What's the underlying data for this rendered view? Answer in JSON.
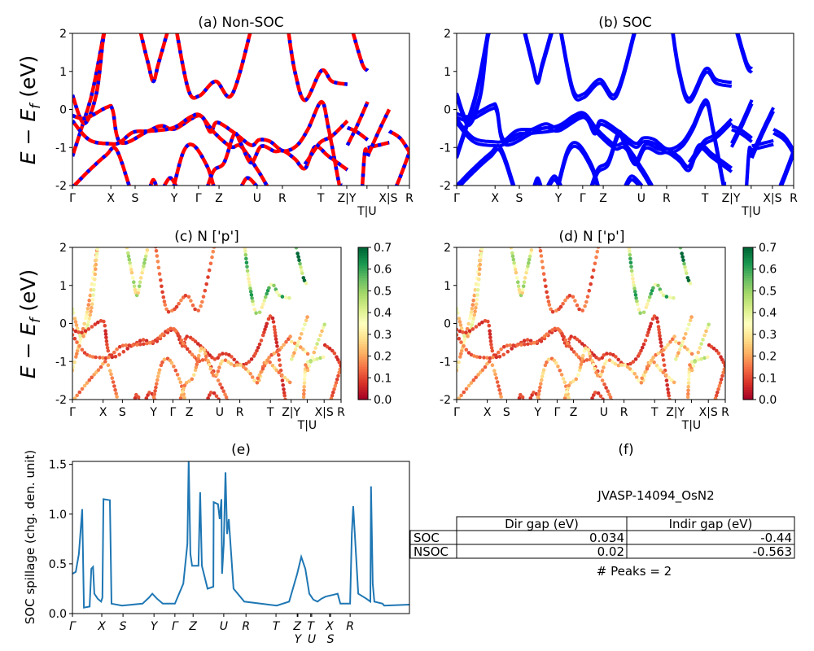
{
  "colors": {
    "nsoc_line": "#ff0000",
    "nsoc_dash": "#0000ff",
    "soc_line": "#0000ff",
    "spillage_line": "#1f77b4",
    "colormap": [
      "#a50026",
      "#d73027",
      "#f46d43",
      "#fdae61",
      "#fee08b",
      "#ffffbf",
      "#d9ef8b",
      "#a6d96a",
      "#66bd63",
      "#1a9850",
      "#006837"
    ]
  },
  "band_ylabel": {
    "main": "E − E",
    "sub": "f",
    "unit": " (eV)"
  },
  "kpath_labels": [
    "Γ",
    "X",
    "S",
    "Y",
    "Γ",
    "Z",
    "U",
    "R",
    "T",
    "Z|Y",
    "T|U",
    "X|S",
    "R"
  ],
  "kpath_ticks": [
    0,
    0.114,
    0.186,
    0.302,
    0.374,
    0.435,
    0.548,
    0.623,
    0.737,
    0.814,
    0.874,
    0.937,
    1.0
  ],
  "energy_ticks": [
    -2,
    -1,
    0,
    1,
    2
  ],
  "chart_data": [
    {
      "id": "a",
      "type": "line",
      "title": "(a) Non-SOC",
      "ylim": [
        -2,
        2
      ],
      "bands": [
        [
          [
            0,
            -1.23
          ],
          [
            0.03,
            -0.41
          ],
          [
            0.06,
            0.49
          ],
          [
            0.095,
            2.1
          ]
        ],
        [
          [
            0,
            0.38
          ],
          [
            0.035,
            -0.37
          ],
          [
            0.071,
            0.41
          ],
          [
            0.091,
            1.84
          ],
          [
            0.1,
            2.1
          ]
        ],
        [
          [
            0,
            -0.16
          ],
          [
            0.039,
            -0.23
          ],
          [
            0.103,
            0.06
          ],
          [
            0.119,
            -0.01
          ],
          [
            0.143,
            -0.87
          ],
          [
            0.224,
            -0.57
          ],
          [
            0.264,
            -0.43
          ],
          [
            0.304,
            -0.51
          ],
          [
            0.377,
            -0.16
          ],
          [
            0.409,
            -0.59
          ],
          [
            0.429,
            -0.34
          ],
          [
            0.481,
            -0.62
          ],
          [
            0.53,
            -0.94
          ],
          [
            0.554,
            -0.8
          ],
          [
            0.586,
            -0.84
          ],
          [
            0.626,
            -1.09
          ],
          [
            0.667,
            -0.94
          ],
          [
            0.7,
            -0.5
          ],
          [
            0.739,
            0.2
          ],
          [
            0.76,
            -0.5
          ],
          [
            0.79,
            -1.9
          ],
          [
            0.795,
            -2.05
          ]
        ],
        [
          [
            0,
            -0.3
          ],
          [
            0.05,
            -0.8
          ],
          [
            0.11,
            -0.9
          ],
          [
            0.14,
            -0.87
          ],
          [
            0.18,
            -0.6
          ],
          [
            0.23,
            -0.57
          ],
          [
            0.3,
            -0.48
          ],
          [
            0.35,
            -0.2
          ],
          [
            0.38,
            -0.16
          ],
          [
            0.42,
            -0.6
          ],
          [
            0.47,
            -0.98
          ],
          [
            0.5,
            -0.97
          ],
          [
            0.55,
            -1.6
          ],
          [
            0.58,
            -2.05
          ]
        ],
        [
          [
            0.2,
            2.1
          ],
          [
            0.225,
            1.2
          ],
          [
            0.24,
            0.74
          ],
          [
            0.255,
            1.2
          ],
          [
            0.284,
            2.1
          ]
        ],
        [
          [
            0.308,
            2.1
          ],
          [
            0.345,
            0.49
          ],
          [
            0.377,
            0.36
          ],
          [
            0.425,
            0.74
          ],
          [
            0.473,
            0.38
          ],
          [
            0.53,
            2.1
          ]
        ],
        [
          [
            0,
            -2.05
          ],
          [
            0.05,
            -1.6
          ],
          [
            0.1,
            -1.2
          ],
          [
            0.13,
            -1.05
          ],
          [
            0.17,
            -2.05
          ]
        ],
        [
          [
            0.27,
            -2.05
          ],
          [
            0.29,
            -1.8
          ],
          [
            0.31,
            -2.05
          ]
        ],
        [
          [
            0.3,
            -2.05
          ],
          [
            0.33,
            -1.1
          ],
          [
            0.36,
            -0.95
          ],
          [
            0.4,
            -1.5
          ],
          [
            0.42,
            -2.05
          ]
        ],
        [
          [
            0.4,
            -2.05
          ],
          [
            0.42,
            -1.6
          ],
          [
            0.45,
            -1.4
          ],
          [
            0.48,
            -0.65
          ],
          [
            0.5,
            -0.9
          ],
          [
            0.53,
            -1.4
          ],
          [
            0.56,
            -0.97
          ],
          [
            0.6,
            -1.1
          ],
          [
            0.626,
            -1.09
          ],
          [
            0.66,
            -1.3
          ],
          [
            0.69,
            -1.55
          ],
          [
            0.72,
            -0.98
          ],
          [
            0.76,
            -1.23
          ],
          [
            0.816,
            -1.59
          ]
        ],
        [
          [
            0.64,
            2.1
          ],
          [
            0.66,
            1.0
          ],
          [
            0.69,
            0.24
          ],
          [
            0.739,
            1.02
          ],
          [
            0.77,
            0.74
          ],
          [
            0.816,
            0.66
          ]
        ],
        [
          [
            0.83,
            2.1
          ],
          [
            0.86,
            1.2
          ],
          [
            0.876,
            1.02
          ]
        ],
        [
          [
            0.69,
            -1.44
          ],
          [
            0.723,
            -1.01
          ],
          [
            0.739,
            -0.84
          ],
          [
            0.771,
            -0.69
          ],
          [
            0.816,
            -0.3
          ]
        ],
        [
          [
            0.816,
            -0.48
          ],
          [
            0.844,
            -0.59
          ],
          [
            0.876,
            -0.8
          ]
        ],
        [
          [
            0.816,
            -0.94
          ],
          [
            0.844,
            -0.44
          ],
          [
            0.876,
            0.2
          ]
        ],
        [
          [
            0.86,
            -2.05
          ],
          [
            0.868,
            -1.09
          ],
          [
            0.876,
            -1.2
          ]
        ],
        [
          [
            0.876,
            -1.01
          ],
          [
            0.908,
            -0.94
          ],
          [
            0.94,
            -0.87
          ]
        ],
        [
          [
            0.876,
            -1.23
          ],
          [
            0.908,
            -0.59
          ],
          [
            0.94,
            0.0
          ]
        ],
        [
          [
            0.94,
            -0.57
          ],
          [
            0.973,
            -0.76
          ],
          [
            1.0,
            -1.12
          ]
        ],
        [
          [
            0.96,
            -2.05
          ],
          [
            0.98,
            -1.6
          ],
          [
            1.0,
            -1.12
          ]
        ],
        [
          [
            0.5,
            -2.05
          ],
          [
            0.52,
            -1.8
          ],
          [
            0.55,
            -2.05
          ]
        ],
        [
          [
            0.23,
            -2.05
          ],
          [
            0.24,
            -1.85
          ],
          [
            0.25,
            -2.05
          ]
        ]
      ]
    },
    {
      "id": "b",
      "type": "line",
      "title": "(b) SOC",
      "ylim": [
        -2,
        2
      ]
    },
    {
      "id": "c",
      "type": "scatter",
      "title": "(c)  N ['p']",
      "ylim": [
        -2,
        2
      ],
      "colorbar_range": [
        0,
        0.7
      ],
      "colorbar_ticks": [
        "0.0",
        "0.1",
        "0.2",
        "0.3",
        "0.4",
        "0.5",
        "0.6",
        "0.7"
      ],
      "band_weights": [
        0.3,
        0.35,
        0.1,
        0.15,
        0.45,
        0.15,
        0.2,
        0.1,
        0.2,
        0.25,
        0.55,
        0.7,
        0.2,
        0.3,
        0.35,
        0.3,
        0.5,
        0.4,
        0.1,
        0.15,
        0.1,
        0.1
      ]
    },
    {
      "id": "d",
      "type": "scatter",
      "title": "(d) N ['p']",
      "ylim": [
        -2,
        2
      ],
      "colorbar_range": [
        0,
        0.7
      ],
      "colorbar_ticks": [
        "0.0",
        "0.1",
        "0.2",
        "0.3",
        "0.4",
        "0.5",
        "0.6",
        "0.7"
      ],
      "band_weights": [
        0.3,
        0.35,
        0.1,
        0.15,
        0.45,
        0.15,
        0.2,
        0.1,
        0.25,
        0.3,
        0.55,
        0.7,
        0.25,
        0.3,
        0.35,
        0.3,
        0.5,
        0.4,
        0.1,
        0.15,
        0.1,
        0.1
      ]
    },
    {
      "id": "e",
      "type": "line",
      "title": "(e)",
      "ylabel": "SOC spillage (chg. den. unit)",
      "ylim": [
        0,
        1.53
      ],
      "yticks": [
        "0.0",
        "0.5",
        "1.0",
        "1.5"
      ],
      "xtick_labels": [
        "Γ",
        "X",
        "S",
        "Y",
        "Γ",
        "Z",
        "U",
        "R",
        "T",
        "Z",
        "Y",
        "T",
        "U",
        "X",
        "S",
        "R"
      ],
      "xtick_pos": [
        0,
        0.087,
        0.15,
        0.242,
        0.304,
        0.358,
        0.449,
        0.515,
        0.604,
        0.667,
        0.669,
        0.707,
        0.71,
        0.763,
        0.766,
        0.824
      ],
      "x": [
        0,
        0.01,
        0.019,
        0.029,
        0.034,
        0.051,
        0.056,
        0.061,
        0.065,
        0.075,
        0.085,
        0.089,
        0.092,
        0.111,
        0.116,
        0.147,
        0.208,
        0.227,
        0.237,
        0.251,
        0.268,
        0.304,
        0.329,
        0.341,
        0.345,
        0.35,
        0.355,
        0.374,
        0.379,
        0.384,
        0.401,
        0.418,
        0.419,
        0.432,
        0.437,
        0.442,
        0.444,
        0.449,
        0.454,
        0.459,
        0.464,
        0.466,
        0.471,
        0.478,
        0.51,
        0.558,
        0.606,
        0.643,
        0.667,
        0.679,
        0.691,
        0.703,
        0.715,
        0.727,
        0.739,
        0.751,
        0.775,
        0.787,
        0.795,
        0.824,
        0.829,
        0.833,
        0.838,
        0.848,
        0.872,
        0.884,
        0.886,
        0.891,
        0.896,
        0.92,
        0.925,
        1.0
      ],
      "y": [
        0.4,
        0.42,
        0.6,
        1.05,
        0.06,
        0.07,
        0.45,
        0.47,
        0.2,
        0.15,
        0.12,
        0.16,
        1.15,
        1.14,
        0.1,
        0.08,
        0.1,
        0.16,
        0.2,
        0.15,
        0.1,
        0.1,
        0.3,
        0.7,
        1.55,
        0.6,
        0.48,
        0.48,
        1.22,
        0.48,
        0.25,
        0.27,
        1.12,
        1.1,
        0.95,
        1.15,
        0.4,
        0.7,
        1.42,
        0.8,
        0.95,
        0.85,
        0.6,
        0.25,
        0.12,
        0.1,
        0.08,
        0.12,
        0.4,
        0.57,
        0.45,
        0.2,
        0.14,
        0.12,
        0.15,
        0.17,
        0.19,
        0.2,
        0.1,
        0.1,
        0.8,
        1.08,
        0.8,
        0.2,
        0.15,
        0.12,
        1.28,
        0.3,
        0.12,
        0.1,
        0.08,
        0.09
      ]
    },
    {
      "id": "f",
      "type": "table",
      "title": "(f)",
      "material": "JVASP-14094_OsN2",
      "columns": [
        "",
        "Dir gap (eV)",
        "Indir gap (eV)"
      ],
      "rows": [
        [
          "SOC",
          "0.034",
          "-0.44"
        ],
        [
          "NSOC",
          "0.02",
          "-0.563"
        ]
      ],
      "note": "# Peaks = 2"
    }
  ]
}
